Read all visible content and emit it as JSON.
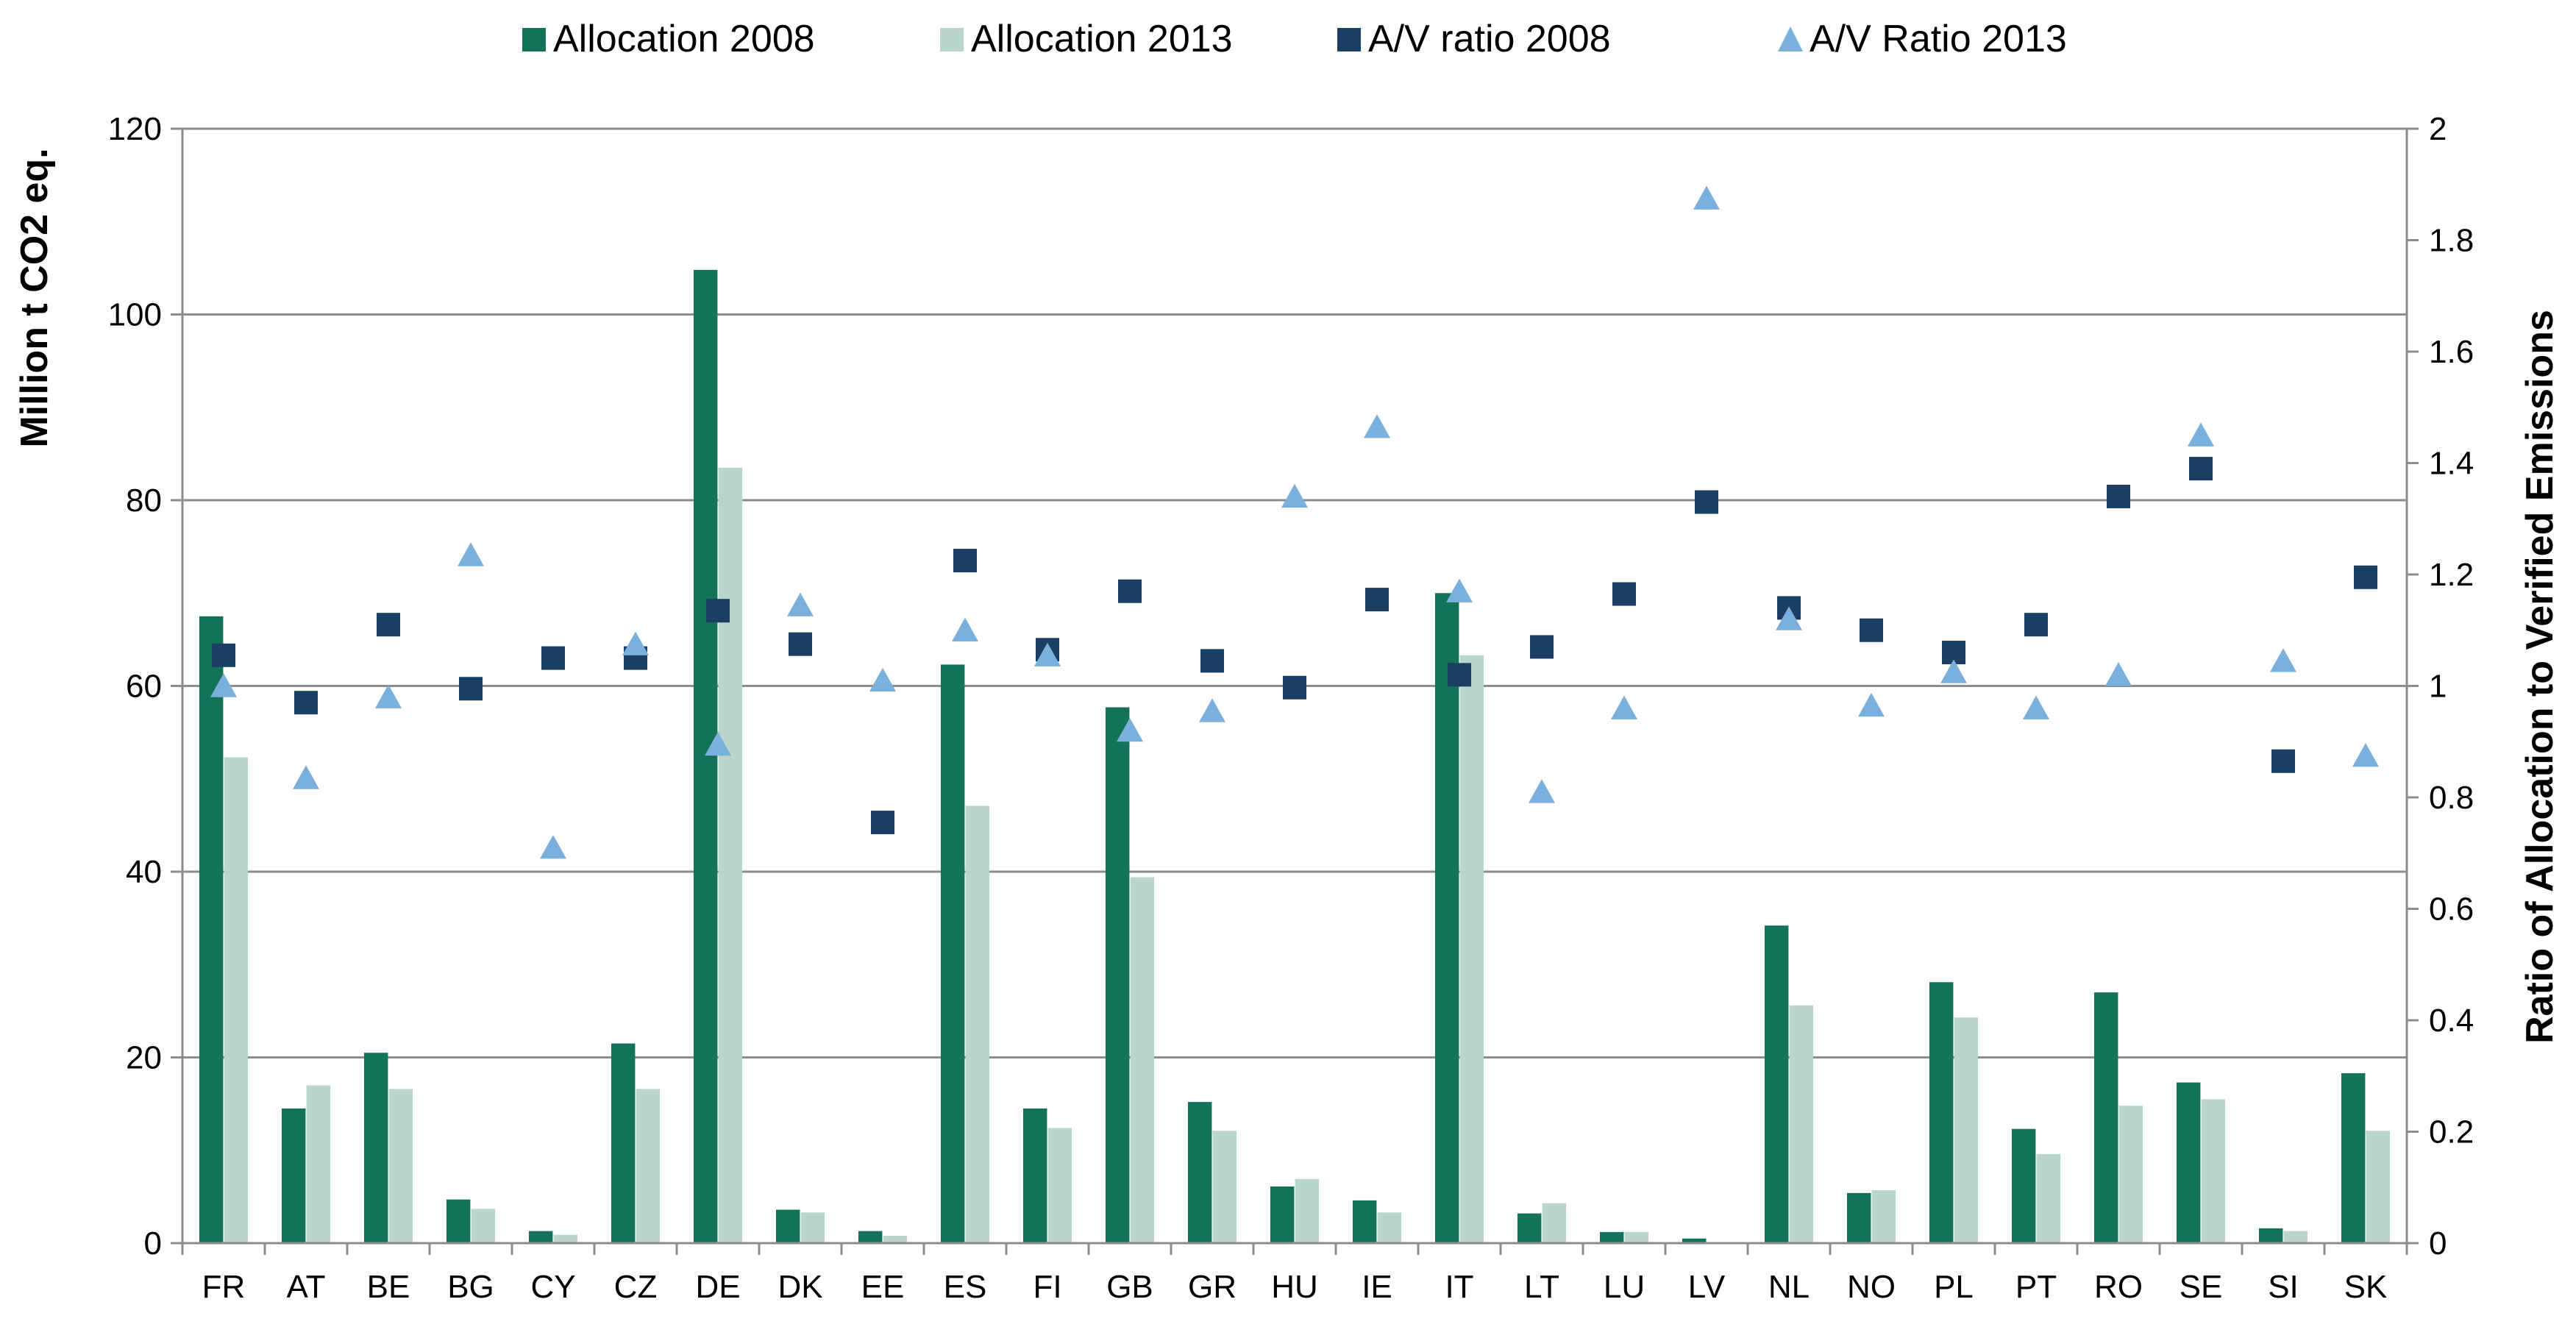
{
  "chart_data": {
    "type": "bar",
    "categories": [
      "FR",
      "AT",
      "BE",
      "BG",
      "CY",
      "CZ",
      "DE",
      "DK",
      "EE",
      "ES",
      "FI",
      "GB",
      "GR",
      "HU",
      "IE",
      "IT",
      "LT",
      "LU",
      "LV",
      "NL",
      "NO",
      "PL",
      "PT",
      "RO",
      "SE",
      "SI",
      "SK"
    ],
    "series": [
      {
        "name": "Allocation 2008",
        "type": "bar",
        "axis": "left",
        "color": "#127358",
        "values": [
          67.5,
          14.5,
          20.5,
          4.7,
          1.3,
          21.5,
          104.8,
          3.6,
          1.3,
          62.3,
          14.5,
          57.7,
          15.2,
          6.1,
          4.6,
          70.0,
          3.2,
          1.2,
          0.5,
          34.2,
          5.4,
          28.1,
          12.3,
          27.0,
          17.3,
          1.6,
          18.3
        ]
      },
      {
        "name": "Allocation 2013",
        "type": "bar",
        "axis": "left",
        "color": "#b9d6cb",
        "values": [
          52.3,
          17.0,
          16.6,
          3.7,
          0.9,
          16.6,
          83.5,
          3.3,
          0.8,
          47.1,
          12.4,
          39.4,
          12.1,
          6.9,
          3.3,
          63.3,
          4.3,
          1.2,
          0.0,
          25.6,
          5.7,
          24.3,
          9.6,
          14.8,
          15.5,
          1.3,
          12.1
        ]
      },
      {
        "name": "A/V ratio 2008",
        "type": "scatter",
        "marker": "square",
        "axis": "right",
        "color": "#1b3f62",
        "values": [
          1.055,
          0.97,
          1.11,
          0.995,
          1.05,
          1.05,
          1.135,
          1.075,
          0.755,
          1.225,
          1.065,
          1.17,
          1.045,
          0.997,
          1.155,
          1.02,
          1.07,
          1.165,
          1.33,
          1.14,
          1.1,
          1.06,
          1.11,
          1.34,
          1.39,
          0.865,
          1.195
        ]
      },
      {
        "name": "A/V Ratio 2013",
        "type": "scatter",
        "marker": "triangle",
        "axis": "right",
        "color": "#7ab0dd",
        "values": [
          1.0,
          0.835,
          0.98,
          1.235,
          0.71,
          1.075,
          0.895,
          1.145,
          1.01,
          1.1,
          1.055,
          0.92,
          0.955,
          1.34,
          1.465,
          1.17,
          0.81,
          0.96,
          1.875,
          1.12,
          0.965,
          1.025,
          0.96,
          1.02,
          1.45,
          1.045,
          0.875
        ]
      }
    ],
    "ylabel": "Million t CO2 eq.",
    "ylim": [
      0,
      120
    ],
    "yticks": [
      "0",
      "20",
      "40",
      "60",
      "80",
      "100",
      "120"
    ],
    "y2label": "Ratio of Allocation to Verified Emissions",
    "y2lim": [
      0,
      2
    ],
    "y2ticks": [
      "0",
      "0.2",
      "0.4",
      "0.6",
      "0.8",
      "1",
      "1.2",
      "1.4",
      "1.6",
      "1.8",
      "2"
    ],
    "grid": true,
    "legend_position": "top"
  }
}
